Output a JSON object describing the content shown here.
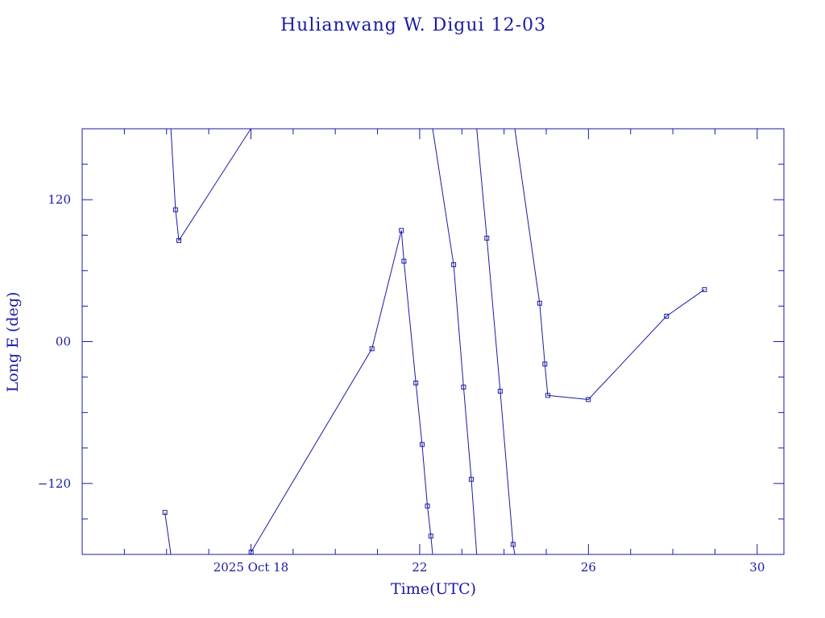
{
  "colors": {
    "ink": "#1a1aa6",
    "background": "#ffffff"
  },
  "chart_data": {
    "type": "line",
    "title": "Hulianwang W. Digui 12-03",
    "xlabel": "Time(UTC)",
    "ylabel": "Long E (deg)",
    "xlim": [
      "2025-10-14",
      "2025-10-30 15:12"
    ],
    "ylim": [
      -180,
      180
    ],
    "x_ticks": [
      {
        "x": "2025-10-18",
        "label": "2025 Oct 18"
      },
      {
        "x": "2025-10-22",
        "label": "22"
      },
      {
        "x": "2025-10-26",
        "label": "26"
      },
      {
        "x": "2025-10-30",
        "label": "30"
      }
    ],
    "y_ticks": [
      {
        "y": 120,
        "label": "120"
      },
      {
        "y": 0,
        "label": "00"
      },
      {
        "y": -120,
        "label": "−120"
      }
    ],
    "grid": false,
    "legend": "none",
    "series": [
      {
        "points": [
          {
            "x": "2025-10-15 23:04",
            "y": -144.5,
            "marker": true
          },
          {
            "x": "2025-10-16 02:28",
            "y": -180
          },
          {
            "x": "2025-10-16 02:28",
            "y": 180
          },
          {
            "x": "2025-10-16 05:07",
            "y": 111.5,
            "marker": true
          },
          {
            "x": "2025-10-16 07:00",
            "y": 85.5,
            "marker": true
          },
          {
            "x": "2025-10-17 23:55",
            "y": 180
          },
          {
            "x": "2025-10-17 23:55",
            "y": -180
          },
          {
            "x": "2025-10-18 00:05",
            "y": -178,
            "marker": true
          },
          {
            "x": "2025-10-20 20:52",
            "y": -6,
            "marker": true
          },
          {
            "x": "2025-10-21 13:35",
            "y": 94,
            "marker": true
          },
          {
            "x": "2025-10-21 15:02",
            "y": 68,
            "marker": true
          },
          {
            "x": "2025-10-21 21:49",
            "y": -35,
            "marker": true
          },
          {
            "x": "2025-10-22 01:23",
            "y": -87,
            "marker": true
          },
          {
            "x": "2025-10-22 04:24",
            "y": -139,
            "marker": true
          },
          {
            "x": "2025-10-22 06:21",
            "y": -164.5,
            "marker": true
          },
          {
            "x": "2025-10-22 07:21",
            "y": -180
          },
          {
            "x": "2025-10-22 07:21",
            "y": 180
          },
          {
            "x": "2025-10-22 19:20",
            "y": 65,
            "marker": true
          },
          {
            "x": "2025-10-23 00:58",
            "y": -38.5,
            "marker": true
          },
          {
            "x": "2025-10-23 05:21",
            "y": -116.5,
            "marker": true
          },
          {
            "x": "2025-10-23 08:26",
            "y": -180
          },
          {
            "x": "2025-10-23 08:26",
            "y": 180
          },
          {
            "x": "2025-10-23 14:12",
            "y": 87.5,
            "marker": true
          },
          {
            "x": "2025-10-23 21:49",
            "y": -42,
            "marker": true
          },
          {
            "x": "2025-10-24 05:08",
            "y": -171.5,
            "marker": true
          },
          {
            "x": "2025-10-24 06:06",
            "y": -180
          },
          {
            "x": "2025-10-24 06:06",
            "y": 180
          },
          {
            "x": "2025-10-24 20:14",
            "y": 32.5,
            "marker": true
          },
          {
            "x": "2025-10-24 23:13",
            "y": -19,
            "marker": true
          },
          {
            "x": "2025-10-25 00:53",
            "y": -45.5,
            "marker": true
          },
          {
            "x": "2025-10-25 23:55",
            "y": -49,
            "marker": true
          },
          {
            "x": "2025-10-27 20:24",
            "y": 21.5,
            "marker": true
          },
          {
            "x": "2025-10-28 18:00",
            "y": 44,
            "marker": true
          }
        ]
      }
    ]
  }
}
